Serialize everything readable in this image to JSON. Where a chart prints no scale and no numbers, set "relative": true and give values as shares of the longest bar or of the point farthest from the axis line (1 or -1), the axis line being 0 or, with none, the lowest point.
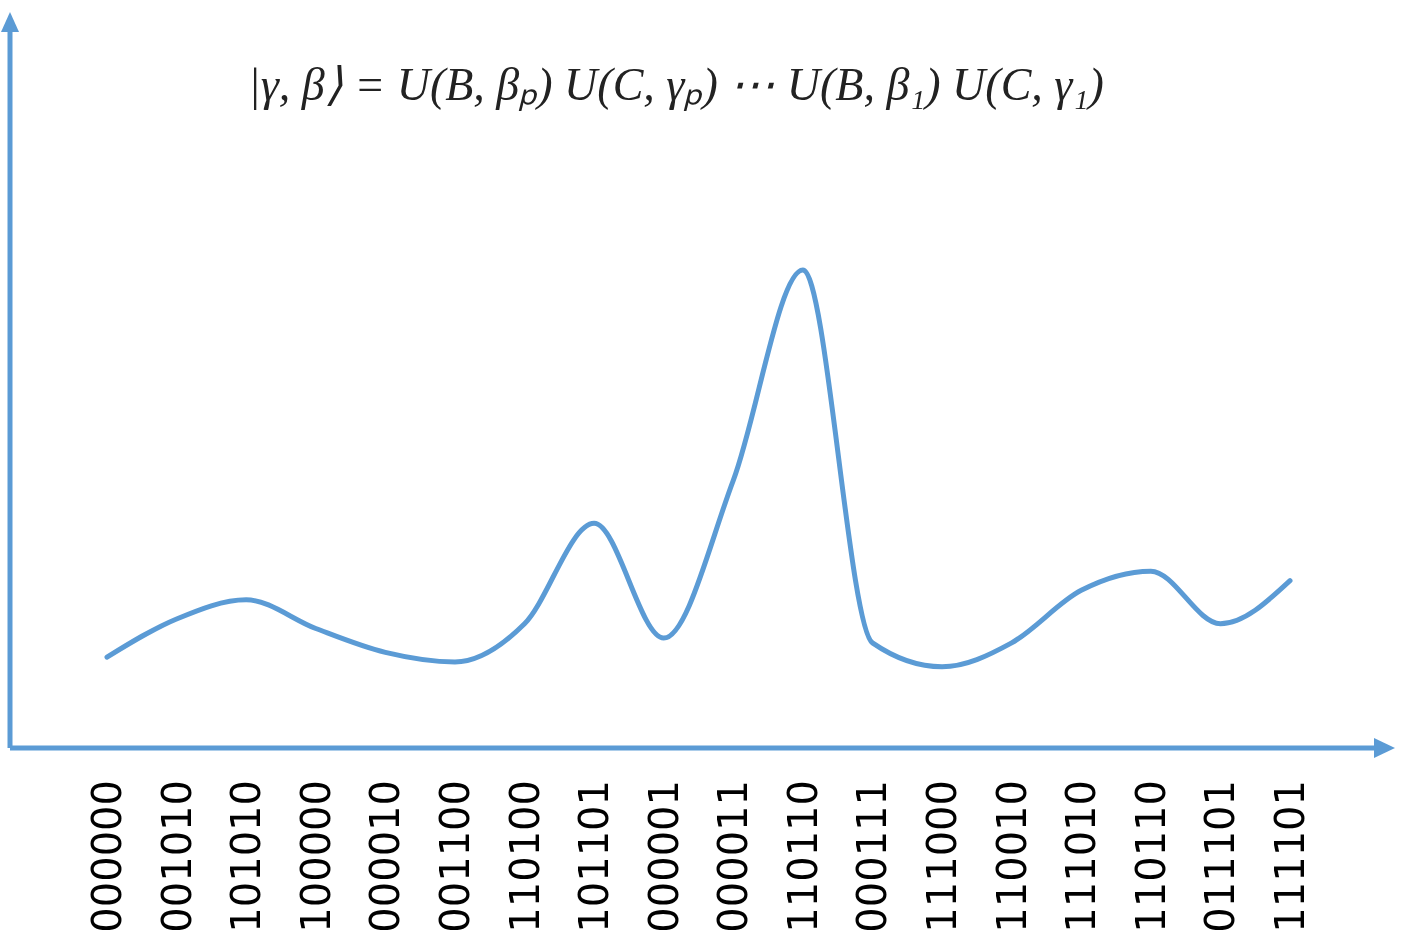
{
  "chart_data": {
    "type": "line",
    "title": "|γ, β⟩ = U(B, βₚ) U(C, γₚ) ⋯ U(B, β₁) U(C, γ₁)",
    "relative": true,
    "categories": [
      "000000",
      "001010",
      "101010",
      "100000",
      "000010",
      "001100",
      "110100",
      "101101",
      "000001",
      "000011",
      "110110",
      "000111",
      "111000",
      "110010",
      "111010",
      "110110",
      "011101",
      "111101"
    ],
    "series": [
      {
        "color": "#5b9bd5",
        "values": [
          0.19,
          0.27,
          0.31,
          0.25,
          0.2,
          0.18,
          0.26,
          0.47,
          0.23,
          0.56,
          1,
          0.22,
          0.17,
          0.22,
          0.33,
          0.37,
          0.26,
          0.35
        ]
      }
    ],
    "marker": "none",
    "line_style": "solid"
  }
}
